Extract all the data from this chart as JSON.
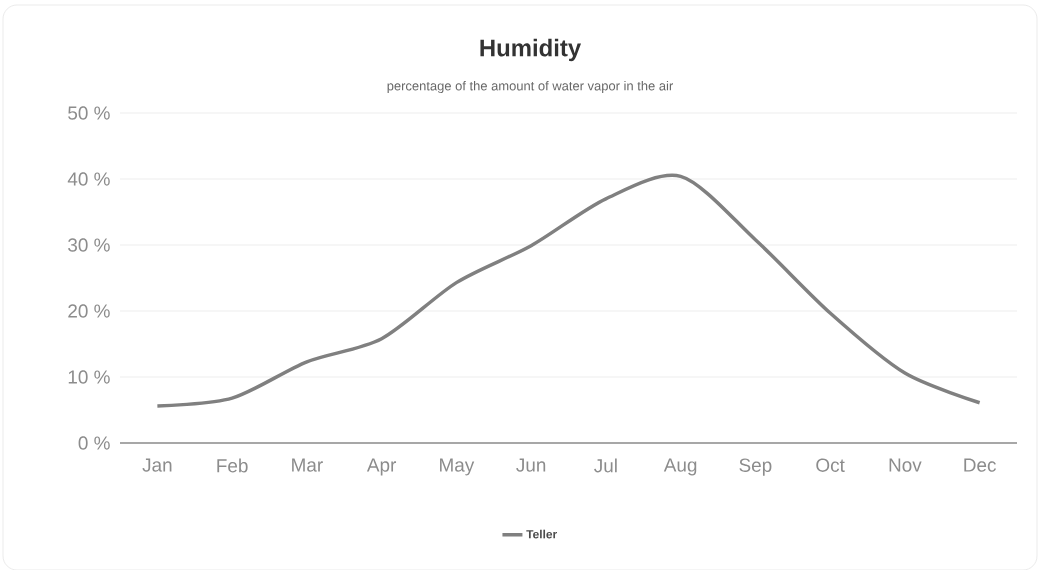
{
  "chart_data": {
    "type": "line",
    "title": "Humidity",
    "subtitle": "percentage of the amount of water vapor in the air",
    "categories": [
      "Jan",
      "Feb",
      "Mar",
      "Apr",
      "May",
      "Jun",
      "Jul",
      "Aug",
      "Sep",
      "Oct",
      "Nov",
      "Dec"
    ],
    "series": [
      {
        "name": "Teller",
        "color": "#808080",
        "values": [
          5.6,
          6.8,
          12.3,
          15.8,
          24.3,
          29.9,
          37.0,
          40.4,
          30.8,
          19.7,
          10.6,
          6.1
        ]
      }
    ],
    "ylim": [
      0,
      50
    ],
    "yticks": [
      {
        "value": 0,
        "label": "0 %"
      },
      {
        "value": 10,
        "label": "10 %"
      },
      {
        "value": 20,
        "label": "20 %"
      },
      {
        "value": 30,
        "label": "30 %"
      },
      {
        "value": 40,
        "label": "40 %"
      },
      {
        "value": 50,
        "label": "50 %"
      }
    ],
    "grid": "y",
    "legend": "bottom",
    "marker": "none",
    "line_style": "solid"
  }
}
